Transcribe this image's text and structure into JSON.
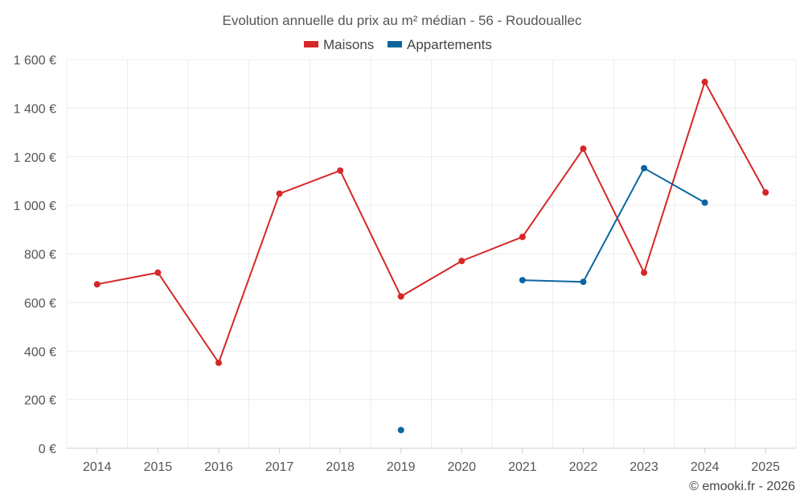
{
  "chart_data": {
    "type": "line",
    "title": "Evolution annuelle du prix au m² médian - 56 - Roudouallec",
    "categories": [
      "2014",
      "2015",
      "2016",
      "2017",
      "2018",
      "2019",
      "2020",
      "2021",
      "2022",
      "2023",
      "2024",
      "2025"
    ],
    "series": [
      {
        "name": "Maisons",
        "color": "#d62728",
        "values": [
          675,
          723,
          352,
          1048,
          1143,
          625,
          771,
          870,
          1233,
          723,
          1508,
          1053
        ]
      },
      {
        "name": "Appartements",
        "color": "#0b66a0",
        "values": [
          null,
          null,
          null,
          null,
          null,
          75,
          null,
          692,
          685,
          1153,
          1011,
          null
        ]
      }
    ],
    "ylim": [
      0,
      1600
    ],
    "yticks": [
      0,
      200,
      400,
      600,
      800,
      1000,
      1200,
      1400,
      1600
    ],
    "ytick_labels": [
      "0 €",
      "200 €",
      "400 €",
      "600 €",
      "800 €",
      "1 000 €",
      "1 200 €",
      "1 400 €",
      "1 600 €"
    ],
    "xlabel": "",
    "ylabel": "",
    "grid": true,
    "legend_position": "top-center"
  },
  "credit": "© emooki.fr - 2026"
}
